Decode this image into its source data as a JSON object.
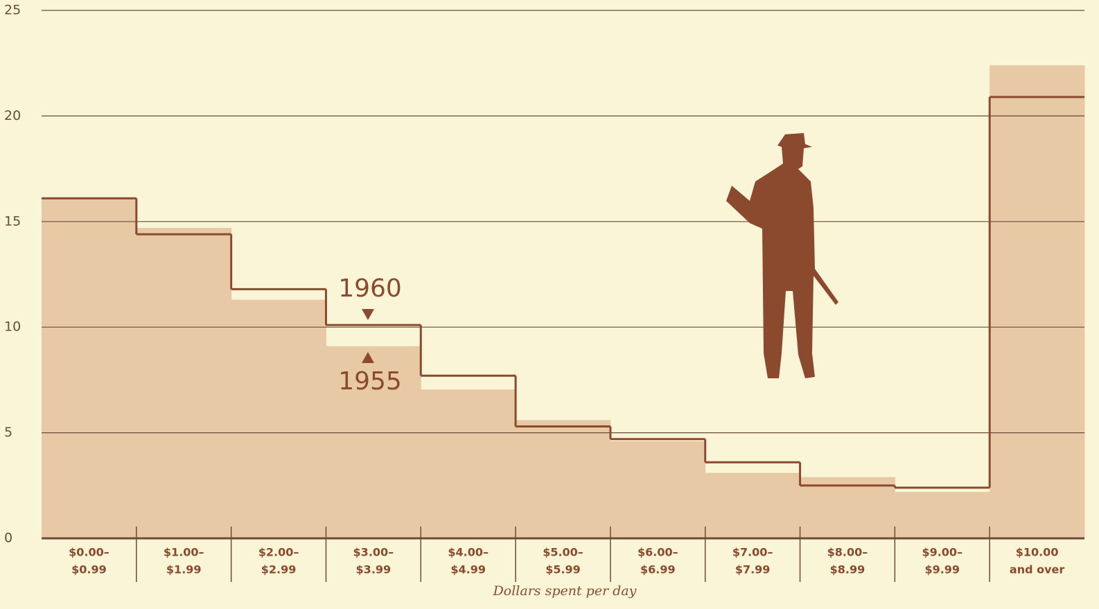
{
  "chart_data": {
    "type": "step",
    "x_label": "Dollars spent per day",
    "categories": [
      [
        "$0.00–",
        "$0.99"
      ],
      [
        "$1.00–",
        "$1.99"
      ],
      [
        "$2.00–",
        "$2.99"
      ],
      [
        "$3.00–",
        "$3.99"
      ],
      [
        "$4.00–",
        "$4.99"
      ],
      [
        "$5.00–",
        "$5.99"
      ],
      [
        "$6.00–",
        "$6.99"
      ],
      [
        "$7.00–",
        "$7.99"
      ],
      [
        "$8.00–",
        "$8.99"
      ],
      [
        "$9.00–",
        "$9.99"
      ],
      [
        "$10.00",
        "and over"
      ]
    ],
    "series": [
      {
        "name": "1955",
        "style": "area",
        "color": "#e8c9a6",
        "values": [
          16.1,
          14.7,
          11.3,
          9.1,
          7.05,
          5.6,
          4.6,
          3.1,
          2.9,
          2.2,
          22.4
        ]
      },
      {
        "name": "1960",
        "style": "step",
        "color": "#8b4a2e",
        "values": [
          16.1,
          14.4,
          11.8,
          10.1,
          7.7,
          5.3,
          4.7,
          3.6,
          2.5,
          2.4,
          20.9
        ]
      }
    ],
    "ylim": [
      0,
      25
    ],
    "yticks": [
      0,
      5,
      10,
      15,
      20,
      25
    ],
    "grid": true
  }
}
